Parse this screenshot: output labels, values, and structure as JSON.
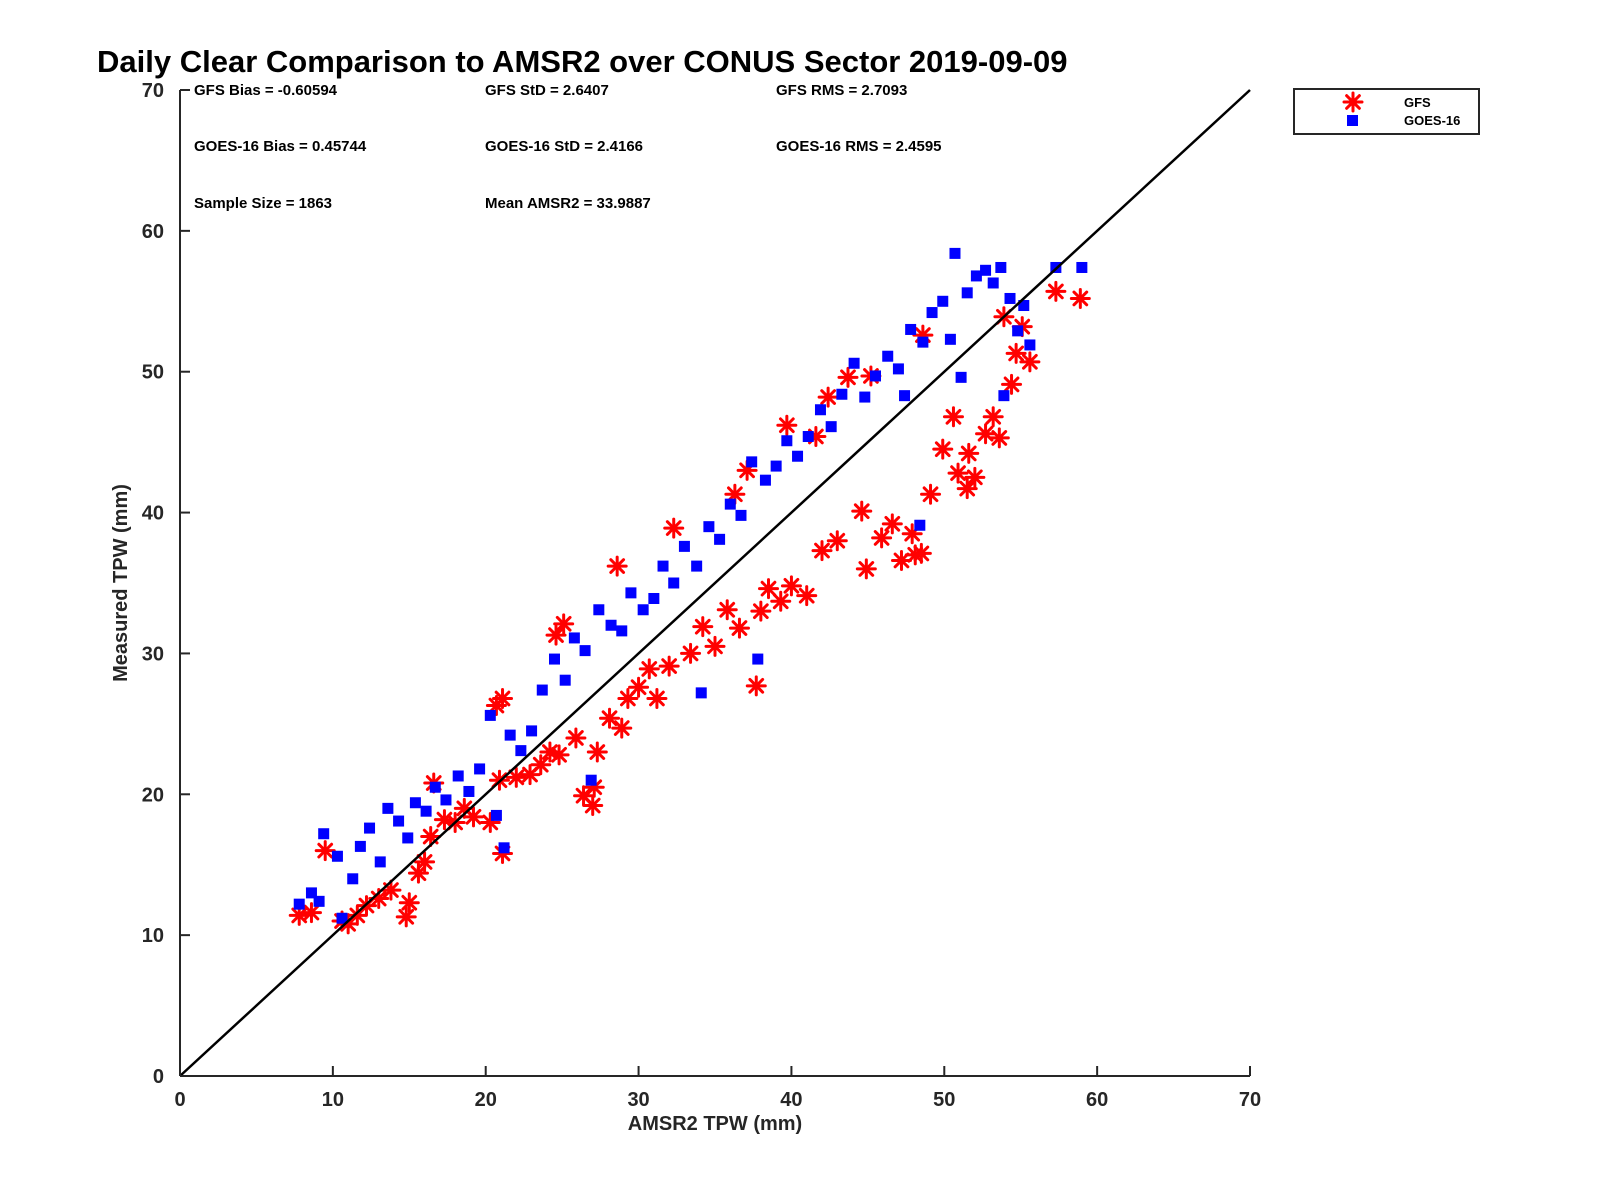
{
  "chart_data": {
    "type": "scatter",
    "title": "Daily Clear Comparison to AMSR2 over CONUS Sector 2019-09-09",
    "xlabel": "AMSR2 TPW (mm)",
    "ylabel": "Measured TPW (mm)",
    "xlim": [
      0,
      70
    ],
    "ylim": [
      0,
      70
    ],
    "xticks": [
      "0",
      "10",
      "20",
      "30",
      "40",
      "50",
      "60",
      "70"
    ],
    "yticks": [
      "0",
      "10",
      "20",
      "30",
      "40",
      "50",
      "60",
      "70"
    ],
    "grid": false,
    "legend_position": "outside-top-right",
    "reference_line": {
      "x": [
        0,
        70
      ],
      "y": [
        0,
        70
      ],
      "color": "#000000"
    },
    "stats": [
      "GFS Bias = -0.60594",
      "GFS StD = 2.6407",
      "GFS RMS = 2.7093",
      "GOES-16 Bias = 0.45744",
      "GOES-16 StD = 2.4166",
      "GOES-16 RMS = 2.4595",
      "Sample Size = 1863",
      "Mean AMSR2 = 33.9887"
    ],
    "series": [
      {
        "name": "GFS",
        "marker": "asterisk",
        "color": "#ff0000",
        "points": [
          [
            7.8,
            11.4
          ],
          [
            8.6,
            11.6
          ],
          [
            9.5,
            16.0
          ],
          [
            10.6,
            11.0
          ],
          [
            11.0,
            10.8
          ],
          [
            11.6,
            11.4
          ],
          [
            12.2,
            12.1
          ],
          [
            13.0,
            12.6
          ],
          [
            13.8,
            13.2
          ],
          [
            14.8,
            11.3
          ],
          [
            15.0,
            12.3
          ],
          [
            15.6,
            14.4
          ],
          [
            16.0,
            15.2
          ],
          [
            16.4,
            17.0
          ],
          [
            16.6,
            20.8
          ],
          [
            17.3,
            18.2
          ],
          [
            18.0,
            18.0
          ],
          [
            18.6,
            19.0
          ],
          [
            19.2,
            18.4
          ],
          [
            20.3,
            18.0
          ],
          [
            20.9,
            21.0
          ],
          [
            20.7,
            26.3
          ],
          [
            21.1,
            26.8
          ],
          [
            21.1,
            15.8
          ],
          [
            22.0,
            21.2
          ],
          [
            22.9,
            21.4
          ],
          [
            23.6,
            22.1
          ],
          [
            24.2,
            23.0
          ],
          [
            24.8,
            22.8
          ],
          [
            25.1,
            32.1
          ],
          [
            24.6,
            31.3
          ],
          [
            25.9,
            24.0
          ],
          [
            26.4,
            19.9
          ],
          [
            27.0,
            19.2
          ],
          [
            27.1,
            20.5
          ],
          [
            27.3,
            23.0
          ],
          [
            28.1,
            25.4
          ],
          [
            28.9,
            24.7
          ],
          [
            28.6,
            36.2
          ],
          [
            29.3,
            26.8
          ],
          [
            30.0,
            27.6
          ],
          [
            30.7,
            28.9
          ],
          [
            31.2,
            26.8
          ],
          [
            32.0,
            29.1
          ],
          [
            32.3,
            38.9
          ],
          [
            33.4,
            30.0
          ],
          [
            34.2,
            31.9
          ],
          [
            35.0,
            30.5
          ],
          [
            35.8,
            33.1
          ],
          [
            36.3,
            41.3
          ],
          [
            36.6,
            31.8
          ],
          [
            37.1,
            43.0
          ],
          [
            37.7,
            27.7
          ],
          [
            38.0,
            33.0
          ],
          [
            38.5,
            34.6
          ],
          [
            39.3,
            33.7
          ],
          [
            40.0,
            34.8
          ],
          [
            39.7,
            46.2
          ],
          [
            41.0,
            34.1
          ],
          [
            41.6,
            45.4
          ],
          [
            42.0,
            37.3
          ],
          [
            42.4,
            48.2
          ],
          [
            43.0,
            38.0
          ],
          [
            43.7,
            49.6
          ],
          [
            44.6,
            40.1
          ],
          [
            44.9,
            36.0
          ],
          [
            45.2,
            49.7
          ],
          [
            45.9,
            38.2
          ],
          [
            46.6,
            39.2
          ],
          [
            47.2,
            36.6
          ],
          [
            47.9,
            38.5
          ],
          [
            48.1,
            37.0
          ],
          [
            48.5,
            37.1
          ],
          [
            48.6,
            52.6
          ],
          [
            49.1,
            41.3
          ],
          [
            49.9,
            44.5
          ],
          [
            50.6,
            46.8
          ],
          [
            50.9,
            42.8
          ],
          [
            51.5,
            41.7
          ],
          [
            51.6,
            44.2
          ],
          [
            52.0,
            42.5
          ],
          [
            52.7,
            45.6
          ],
          [
            53.2,
            46.8
          ],
          [
            53.6,
            45.3
          ],
          [
            53.9,
            53.9
          ],
          [
            54.4,
            49.1
          ],
          [
            54.7,
            51.3
          ],
          [
            55.1,
            53.2
          ],
          [
            55.6,
            50.7
          ],
          [
            57.3,
            55.7
          ],
          [
            58.9,
            55.2
          ]
        ]
      },
      {
        "name": "GOES-16",
        "marker": "square",
        "color": "#0000ff",
        "points": [
          [
            7.8,
            12.2
          ],
          [
            8.6,
            13.0
          ],
          [
            9.1,
            12.4
          ],
          [
            9.4,
            17.2
          ],
          [
            10.3,
            15.6
          ],
          [
            10.6,
            11.2
          ],
          [
            11.3,
            14.0
          ],
          [
            11.8,
            16.3
          ],
          [
            12.4,
            17.6
          ],
          [
            13.1,
            15.2
          ],
          [
            13.6,
            19.0
          ],
          [
            14.3,
            18.1
          ],
          [
            14.9,
            16.9
          ],
          [
            15.4,
            19.4
          ],
          [
            16.1,
            18.8
          ],
          [
            16.7,
            20.5
          ],
          [
            17.4,
            19.6
          ],
          [
            18.2,
            21.3
          ],
          [
            18.9,
            20.2
          ],
          [
            19.6,
            21.8
          ],
          [
            20.3,
            25.6
          ],
          [
            20.7,
            18.5
          ],
          [
            21.2,
            16.2
          ],
          [
            21.6,
            24.2
          ],
          [
            22.3,
            23.1
          ],
          [
            23.0,
            24.5
          ],
          [
            23.7,
            27.4
          ],
          [
            24.5,
            29.6
          ],
          [
            25.2,
            28.1
          ],
          [
            25.8,
            31.1
          ],
          [
            26.5,
            30.2
          ],
          [
            26.9,
            21.0
          ],
          [
            27.4,
            33.1
          ],
          [
            28.2,
            32.0
          ],
          [
            28.9,
            31.6
          ],
          [
            29.5,
            34.3
          ],
          [
            30.3,
            33.1
          ],
          [
            31.0,
            33.9
          ],
          [
            31.6,
            36.2
          ],
          [
            32.3,
            35.0
          ],
          [
            33.0,
            37.6
          ],
          [
            33.8,
            36.2
          ],
          [
            34.1,
            27.2
          ],
          [
            34.6,
            39.0
          ],
          [
            35.3,
            38.1
          ],
          [
            36.0,
            40.6
          ],
          [
            36.7,
            39.8
          ],
          [
            37.4,
            43.6
          ],
          [
            37.8,
            29.6
          ],
          [
            38.3,
            42.3
          ],
          [
            39.0,
            43.3
          ],
          [
            39.7,
            45.1
          ],
          [
            40.4,
            44.0
          ],
          [
            41.1,
            45.4
          ],
          [
            41.9,
            47.3
          ],
          [
            42.6,
            46.1
          ],
          [
            43.3,
            48.4
          ],
          [
            44.1,
            50.6
          ],
          [
            44.8,
            48.2
          ],
          [
            45.5,
            49.7
          ],
          [
            46.3,
            51.1
          ],
          [
            47.0,
            50.2
          ],
          [
            47.4,
            48.3
          ],
          [
            47.8,
            53.0
          ],
          [
            48.4,
            39.1
          ],
          [
            48.6,
            52.1
          ],
          [
            49.2,
            54.2
          ],
          [
            49.9,
            55.0
          ],
          [
            50.4,
            52.3
          ],
          [
            50.7,
            58.4
          ],
          [
            51.1,
            49.6
          ],
          [
            51.5,
            55.6
          ],
          [
            52.1,
            56.8
          ],
          [
            52.7,
            57.2
          ],
          [
            53.2,
            56.3
          ],
          [
            53.7,
            57.4
          ],
          [
            53.9,
            48.3
          ],
          [
            54.3,
            55.2
          ],
          [
            54.8,
            52.9
          ],
          [
            55.2,
            54.7
          ],
          [
            55.6,
            51.9
          ],
          [
            57.3,
            57.4
          ],
          [
            59.0,
            57.4
          ]
        ]
      }
    ]
  }
}
